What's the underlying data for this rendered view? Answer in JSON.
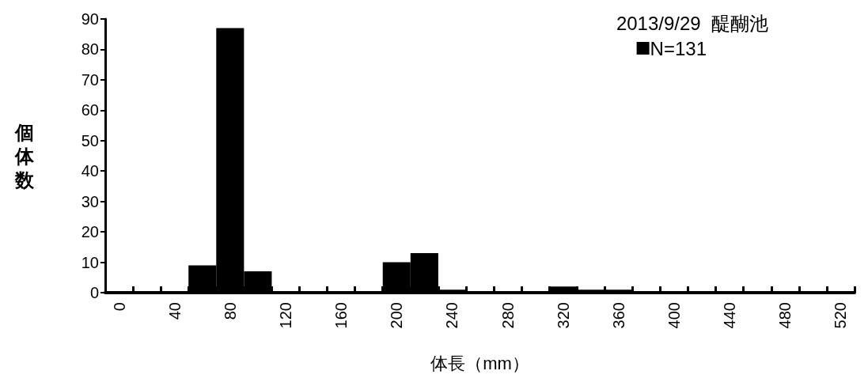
{
  "chart_data": {
    "type": "bar",
    "title": "2013/9/29  醍醐池",
    "xlabel": "体長（mm）",
    "ylabel": "個体数",
    "categories": [
      "0",
      null,
      "40",
      null,
      "80",
      null,
      "120",
      null,
      "160",
      null,
      "200",
      null,
      "240",
      null,
      "280",
      null,
      "320",
      null,
      "360",
      null,
      "400",
      null,
      "440",
      null,
      "480",
      null,
      "520"
    ],
    "series": [
      {
        "name": "N=131",
        "color": "#000000",
        "values": [
          0,
          0,
          0,
          9,
          87,
          7,
          0,
          0,
          0,
          0,
          10,
          13,
          1,
          0,
          0,
          0,
          2,
          1,
          1,
          0,
          0,
          0,
          0,
          0,
          0,
          0,
          0
        ]
      }
    ],
    "ylim": [
      0,
      90
    ],
    "yticks": [
      0,
      10,
      20,
      30,
      40,
      50,
      60,
      70,
      80,
      90
    ],
    "grid": false,
    "legend": "top right"
  }
}
